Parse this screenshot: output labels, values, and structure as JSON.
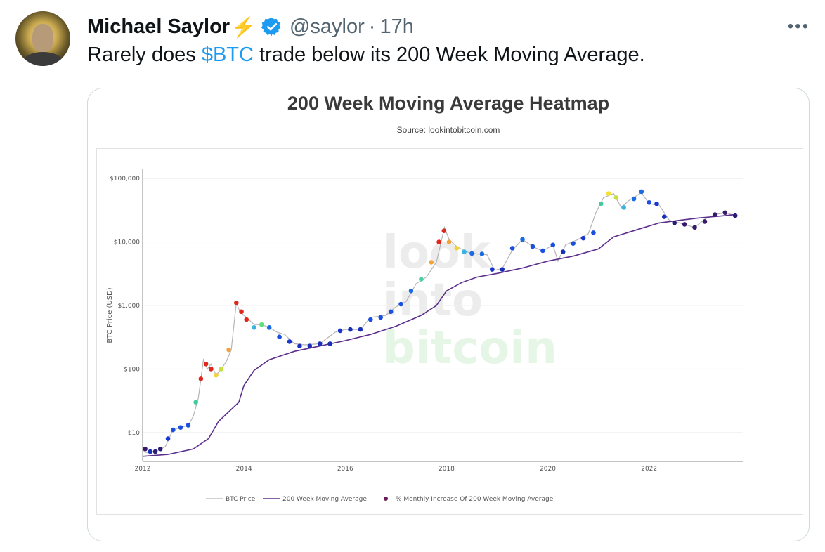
{
  "tweet": {
    "author_name": "Michael Saylor",
    "name_emoji": "⚡",
    "handle": "@saylor",
    "separator": "·",
    "time": "17h",
    "more_label": "•••",
    "text_before": "Rarely does ",
    "cashtag": "$BTC",
    "text_after": " trade below its 200 Week Moving Average."
  },
  "icons": {
    "verified": "verified-badge-icon",
    "more": "more-options-icon",
    "bolt": "lightning-bolt-icon"
  },
  "colors": {
    "cashtag": "#1d9bf0",
    "verified": "#1d9bf0",
    "ma_line": "#5b2e8c",
    "price_line": "#b5b5b5"
  },
  "chart_data": {
    "type": "line",
    "title": "200 Week Moving Average Heatmap",
    "subtitle": "Source: lookintobitcoin.com",
    "watermark": [
      "look",
      "into",
      "bitcoin"
    ],
    "xlabel": "",
    "ylabel": "BTC Price (USD)",
    "y_scale": "log",
    "ylim": [
      3.5,
      140000
    ],
    "xlim": [
      2012.0,
      2023.85
    ],
    "x_ticks": [
      2012,
      2014,
      2016,
      2018,
      2020,
      2022
    ],
    "x_tick_labels": [
      "2012",
      "2014",
      "2016",
      "2018",
      "2020",
      "2022"
    ],
    "y_ticks": [
      10,
      100,
      1000,
      10000,
      100000
    ],
    "y_tick_labels": [
      "$10",
      "$100",
      "$1,000",
      "$10,000",
      "$100,000"
    ],
    "legend": [
      "BTC Price",
      "200 Week Moving Average",
      "% Monthly Increase Of 200 Week Moving Average"
    ],
    "legend_position": "bottom",
    "series": [
      {
        "name": "BTC Price",
        "x": [
          2012.0,
          2012.1,
          2012.2,
          2012.3,
          2012.45,
          2012.6,
          2012.75,
          2012.9,
          2013.0,
          2013.1,
          2013.2,
          2013.28,
          2013.35,
          2013.45,
          2013.55,
          2013.65,
          2013.75,
          2013.85,
          2013.92,
          2014.0,
          2014.1,
          2014.2,
          2014.35,
          2014.5,
          2014.65,
          2014.8,
          2015.0,
          2015.2,
          2015.5,
          2015.8,
          2016.0,
          2016.3,
          2016.5,
          2016.8,
          2017.0,
          2017.2,
          2017.4,
          2017.6,
          2017.8,
          2017.96,
          2018.05,
          2018.2,
          2018.4,
          2018.6,
          2018.8,
          2018.95,
          2019.1,
          2019.3,
          2019.5,
          2019.7,
          2019.9,
          2020.1,
          2020.2,
          2020.35,
          2020.6,
          2020.8,
          2020.95,
          2021.1,
          2021.3,
          2021.45,
          2021.6,
          2021.85,
          2022.0,
          2022.2,
          2022.4,
          2022.6,
          2022.9,
          2023.1,
          2023.3,
          2023.5,
          2023.7
        ],
        "values": [
          5,
          4.8,
          5,
          5.2,
          6,
          11,
          12,
          13,
          18,
          35,
          140,
          100,
          120,
          80,
          100,
          130,
          200,
          1100,
          800,
          700,
          600,
          500,
          500,
          450,
          380,
          350,
          250,
          240,
          250,
          380,
          420,
          420,
          650,
          700,
          950,
          1150,
          2200,
          2800,
          4800,
          17000,
          11000,
          8500,
          7000,
          6500,
          6300,
          3600,
          3800,
          7500,
          11000,
          8500,
          7200,
          9000,
          5000,
          9000,
          11000,
          13500,
          29000,
          50000,
          58000,
          35000,
          45000,
          60000,
          40000,
          38000,
          22000,
          20000,
          17000,
          23000,
          27000,
          29000,
          26000
        ]
      },
      {
        "name": "200 Week Moving Average",
        "x": [
          2012.0,
          2012.5,
          2013.0,
          2013.3,
          2013.5,
          2013.9,
          2014.0,
          2014.2,
          2014.5,
          2015.0,
          2015.5,
          2016.0,
          2016.5,
          2017.0,
          2017.5,
          2017.8,
          2018.0,
          2018.3,
          2018.6,
          2019.0,
          2019.5,
          2020.0,
          2020.5,
          2021.0,
          2021.3,
          2021.8,
          2022.2,
          2022.6,
          2023.0,
          2023.5,
          2023.7
        ],
        "values": [
          4.2,
          4.5,
          5.5,
          8,
          15,
          30,
          55,
          95,
          140,
          190,
          230,
          280,
          350,
          470,
          700,
          1000,
          1700,
          2300,
          2800,
          3200,
          3900,
          5000,
          6000,
          7800,
          12000,
          16000,
          20000,
          22000,
          24000,
          26000,
          27000
        ]
      }
    ],
    "heatmap_points": {
      "x": [
        2012.05,
        2012.15,
        2012.25,
        2012.35,
        2012.5,
        2012.6,
        2012.75,
        2012.9,
        2013.05,
        2013.15,
        2013.25,
        2013.35,
        2013.45,
        2013.55,
        2013.7,
        2013.85,
        2013.95,
        2014.05,
        2014.2,
        2014.35,
        2014.5,
        2014.7,
        2014.9,
        2015.1,
        2015.3,
        2015.5,
        2015.7,
        2015.9,
        2016.1,
        2016.3,
        2016.5,
        2016.7,
        2016.9,
        2017.1,
        2017.3,
        2017.5,
        2017.7,
        2017.85,
        2017.95,
        2018.05,
        2018.2,
        2018.35,
        2018.5,
        2018.7,
        2018.9,
        2019.1,
        2019.3,
        2019.5,
        2019.7,
        2019.9,
        2020.1,
        2020.3,
        2020.5,
        2020.7,
        2020.9,
        2021.05,
        2021.2,
        2021.35,
        2021.5,
        2021.7,
        2021.85,
        2022.0,
        2022.15,
        2022.3,
        2022.5,
        2022.7,
        2022.9,
        2023.1,
        2023.3,
        2023.5,
        2023.7
      ],
      "values": [
        5.5,
        5,
        5,
        5.5,
        8,
        11,
        12,
        13,
        30,
        70,
        120,
        100,
        80,
        100,
        200,
        1100,
        800,
        600,
        450,
        500,
        450,
        320,
        270,
        230,
        230,
        250,
        250,
        400,
        420,
        420,
        600,
        650,
        800,
        1050,
        1700,
        2600,
        4800,
        10000,
        15000,
        10000,
        8000,
        7000,
        6600,
        6500,
        3700,
        3700,
        8000,
        11000,
        8500,
        7300,
        9000,
        7000,
        9500,
        11500,
        14000,
        40000,
        58000,
        50000,
        35000,
        48000,
        62000,
        42000,
        40000,
        25000,
        20000,
        19000,
        17000,
        21000,
        27000,
        29000,
        26000
      ],
      "colors": [
        "#3a1b6b",
        "#1a2fb8",
        "#2a1d7a",
        "#2a1d7a",
        "#1a36d2",
        "#1a4fe0",
        "#1a4fe0",
        "#1a4fe0",
        "#42c9a0",
        "#e0271e",
        "#e0271e",
        "#e0271e",
        "#f2d13b",
        "#c6e23a",
        "#f2a33c",
        "#e0271e",
        "#e0271e",
        "#e0271e",
        "#3ab3e0",
        "#5ce07a",
        "#1a6ae6",
        "#1a4fe0",
        "#1a36d2",
        "#1a2fb8",
        "#1a2fb8",
        "#1a2fb8",
        "#1a2fb8",
        "#1a36d2",
        "#1a2fb8",
        "#1a2fb8",
        "#1a4fe0",
        "#1a4fe0",
        "#1a4fe0",
        "#1a4fe0",
        "#1a6ae6",
        "#4ed0a0",
        "#f2a33c",
        "#e0271e",
        "#e0271e",
        "#f2a33c",
        "#f2d13b",
        "#3ab3e0",
        "#1a6ae6",
        "#1a6ae6",
        "#1a36d2",
        "#1a2fb8",
        "#1a4fe0",
        "#1a6ae6",
        "#1a4fe0",
        "#1a4fe0",
        "#1a4fe0",
        "#1a2fb8",
        "#1a4fe0",
        "#1a36d2",
        "#1a4fe0",
        "#42c9a0",
        "#f2e03b",
        "#c6e23a",
        "#3ab3e0",
        "#1a6ae6",
        "#1a6ae6",
        "#1a4fe0",
        "#1a36d2",
        "#1a2fb8",
        "#2a1d7a",
        "#3a1b6b",
        "#3a1b6b",
        "#3a1b6b",
        "#3a1b6b",
        "#3a1b6b",
        "#2a1d7a"
      ]
    }
  }
}
